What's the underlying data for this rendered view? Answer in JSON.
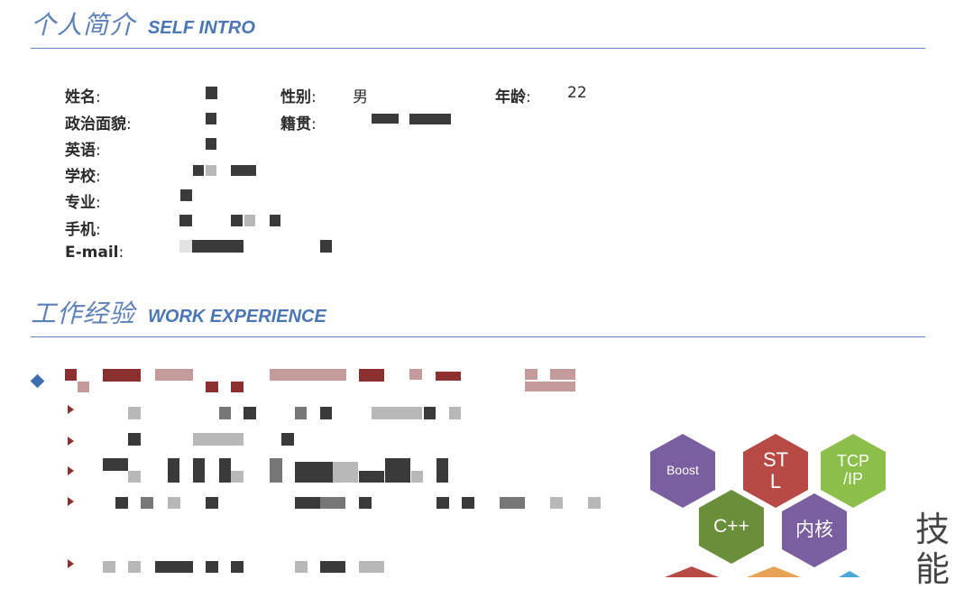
{
  "self_intro": {
    "title_cn": "个人简介",
    "title_en": "SELF INTRO",
    "fields": {
      "name": {
        "label": "姓名",
        "colon": ":"
      },
      "gender": {
        "label": "性别",
        "colon": ":",
        "value": "男"
      },
      "age": {
        "label": "年龄",
        "colon": ":",
        "value": "22"
      },
      "politics": {
        "label": "政治面貌",
        "colon": ":"
      },
      "origin": {
        "label": "籍贯",
        "colon": ":"
      },
      "english": {
        "label": "英语",
        "colon": ":"
      },
      "school": {
        "label": "学校",
        "colon": ":"
      },
      "major": {
        "label": "专业",
        "colon": ":"
      },
      "phone": {
        "label": "手机",
        "colon": ":"
      },
      "email": {
        "label": "E-mail",
        "colon": ":"
      }
    }
  },
  "work_experience": {
    "title_cn": "工作经验",
    "title_en": "WORK EXPERIENCE"
  },
  "skills": {
    "label_cn": "技能",
    "hexagons": [
      {
        "label": "Boost",
        "color": "#7a5fa0"
      },
      {
        "label": "ST\nL",
        "color": "#b84a45"
      },
      {
        "label": "TCP\n/IP",
        "color": "#8cbf4a"
      },
      {
        "label": "C++",
        "color": "#6b8e3a"
      },
      {
        "label": "内核",
        "color": "#7a5fa0"
      }
    ]
  },
  "colors": {
    "title_blue": "#5b7fb8",
    "rule_blue": "#5b86c2",
    "bullet_blue": "#3f6fb3",
    "arrow_red": "#8b2f2f"
  }
}
